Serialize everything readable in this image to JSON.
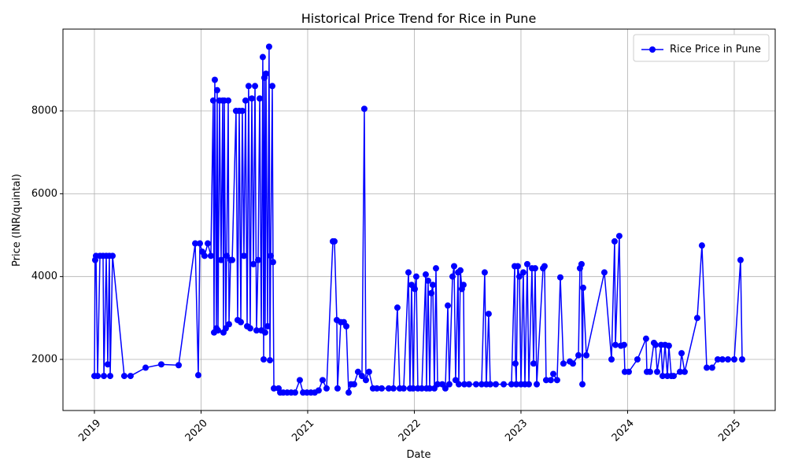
{
  "chart_data": {
    "type": "line",
    "title": "Historical Price Trend for Rice in Pune",
    "x_label": "Date",
    "y_label": "Price (INR/quintal)",
    "xlim": [
      2018.705,
      2025.384
    ],
    "xticks": [
      2019,
      2020,
      2021,
      2022,
      2023,
      2024,
      2025
    ],
    "ylim": [
      766,
      9975
    ],
    "yticks": [
      2000,
      4000,
      6000,
      8000
    ],
    "grid": true,
    "legend": "upper right",
    "x": [
      2019.0,
      2019.007,
      2019.015,
      2019.03,
      2019.052,
      2019.081,
      2019.089,
      2019.111,
      2019.125,
      2019.14,
      2019.148,
      2019.17,
      2019.28,
      2019.339,
      2019.48,
      2019.627,
      2019.79,
      2019.945,
      2019.974,
      2019.989,
      2020.011,
      2020.033,
      2020.063,
      2020.092,
      2020.114,
      2020.122,
      2020.129,
      2020.144,
      2020.151,
      2020.159,
      2020.173,
      2020.188,
      2020.203,
      2020.21,
      2020.218,
      2020.232,
      2020.24,
      2020.255,
      2020.262,
      2020.277,
      2020.292,
      2020.328,
      2020.343,
      2020.358,
      2020.373,
      2020.387,
      2020.402,
      2020.417,
      2020.432,
      2020.446,
      2020.461,
      2020.476,
      2020.491,
      2020.506,
      2020.52,
      2020.535,
      2020.55,
      2020.565,
      2020.579,
      2020.587,
      2020.594,
      2020.601,
      2020.609,
      2020.624,
      2020.638,
      2020.646,
      2020.653,
      2020.668,
      2020.675,
      2020.683,
      2020.727,
      2020.742,
      2020.771,
      2020.808,
      2020.845,
      2020.882,
      2020.926,
      2020.956,
      2020.993,
      2021.03,
      2021.066,
      2021.103,
      2021.14,
      2021.177,
      2021.236,
      2021.251,
      2021.273,
      2021.28,
      2021.31,
      2021.339,
      2021.362,
      2021.384,
      2021.406,
      2021.435,
      2021.472,
      2021.509,
      2021.531,
      2021.546,
      2021.575,
      2021.612,
      2021.649,
      2021.694,
      2021.76,
      2021.804,
      2021.841,
      2021.863,
      2021.9,
      2021.945,
      2021.959,
      2021.974,
      2021.989,
      2022.004,
      2022.018,
      2022.033,
      2022.07,
      2022.107,
      2022.114,
      2022.129,
      2022.144,
      2022.159,
      2022.173,
      2022.188,
      2022.203,
      2022.218,
      2022.262,
      2022.291,
      2022.314,
      2022.328,
      2022.358,
      2022.373,
      2022.387,
      2022.41,
      2022.417,
      2022.432,
      2022.446,
      2022.461,
      2022.469,
      2022.513,
      2022.579,
      2022.631,
      2022.66,
      2022.675,
      2022.697,
      2022.712,
      2022.764,
      2022.838,
      2022.911,
      2022.941,
      2022.948,
      2022.956,
      2022.97,
      2022.985,
      2023.0,
      2023.022,
      2023.037,
      2023.059,
      2023.074,
      2023.103,
      2023.118,
      2023.133,
      2023.148,
      2023.207,
      2023.221,
      2023.236,
      2023.28,
      2023.303,
      2023.339,
      2023.369,
      2023.398,
      2023.458,
      2023.487,
      2023.539,
      2023.553,
      2023.568,
      2023.576,
      2023.583,
      2023.613,
      2023.782,
      2023.849,
      2023.878,
      2023.886,
      2023.922,
      2023.937,
      2023.967,
      2023.974,
      2024.011,
      2024.092,
      2024.173,
      2024.181,
      2024.21,
      2024.247,
      2024.262,
      2024.277,
      2024.314,
      2024.328,
      2024.351,
      2024.373,
      2024.387,
      2024.41,
      2024.432,
      2024.491,
      2024.506,
      2024.535,
      2024.653,
      2024.697,
      2024.742,
      2024.793,
      2024.845,
      2024.889,
      2024.941,
      2025.0,
      2025.059,
      2025.074
    ],
    "series": [
      {
        "name": "Rice Price in Pune",
        "color": "#0000ff",
        "values": [
          1600,
          4400,
          4500,
          1600,
          4500,
          4500,
          1600,
          4500,
          1880,
          4500,
          1600,
          4500,
          1600,
          1600,
          1800,
          1880,
          1860,
          4800,
          1620,
          4800,
          4600,
          4500,
          4800,
          4500,
          8250,
          2650,
          8750,
          2750,
          8500,
          2700,
          8250,
          4400,
          8250,
          2650,
          8250,
          2750,
          4500,
          8250,
          2850,
          4400,
          4400,
          8000,
          2950,
          8000,
          2900,
          8000,
          4500,
          8250,
          2800,
          8600,
          2750,
          8300,
          4300,
          8600,
          2700,
          4400,
          8300,
          2700,
          9300,
          2000,
          8800,
          2650,
          8900,
          2800,
          9550,
          1980,
          4500,
          8600,
          4350,
          1300,
          1300,
          1200,
          1200,
          1200,
          1200,
          1200,
          1500,
          1200,
          1200,
          1200,
          1200,
          1250,
          1500,
          1300,
          4850,
          4850,
          2950,
          1300,
          2900,
          2900,
          2800,
          1200,
          1400,
          1400,
          1700,
          1600,
          8050,
          1500,
          1700,
          1300,
          1300,
          1300,
          1300,
          1300,
          3250,
          1300,
          1300,
          4100,
          1300,
          3800,
          1300,
          3700,
          4000,
          1300,
          1300,
          4050,
          1300,
          3900,
          1300,
          3600,
          3800,
          1300,
          4200,
          1400,
          1400,
          1300,
          3300,
          1400,
          4000,
          4250,
          1500,
          4100,
          1400,
          4150,
          3700,
          3800,
          1400,
          1400,
          1400,
          1400,
          4100,
          1400,
          3100,
          1400,
          1400,
          1400,
          1400,
          4250,
          1900,
          1400,
          4250,
          4000,
          1400,
          4100,
          1400,
          4300,
          1400,
          4200,
          1900,
          4200,
          1400,
          4200,
          4250,
          1500,
          1500,
          1650,
          1500,
          3980,
          1900,
          1950,
          1900,
          2100,
          4200,
          4300,
          1400,
          3730,
          2100,
          4100,
          2000,
          4850,
          2350,
          4980,
          2330,
          2350,
          1700,
          1700,
          2000,
          2500,
          1700,
          1700,
          2400,
          2350,
          1700,
          2350,
          1600,
          2350,
          1600,
          2330,
          1600,
          1600,
          1700,
          2150,
          1700,
          3000,
          4750,
          1800,
          1800,
          2000,
          2000,
          2000,
          2000,
          4400,
          2000
        ]
      }
    ]
  }
}
